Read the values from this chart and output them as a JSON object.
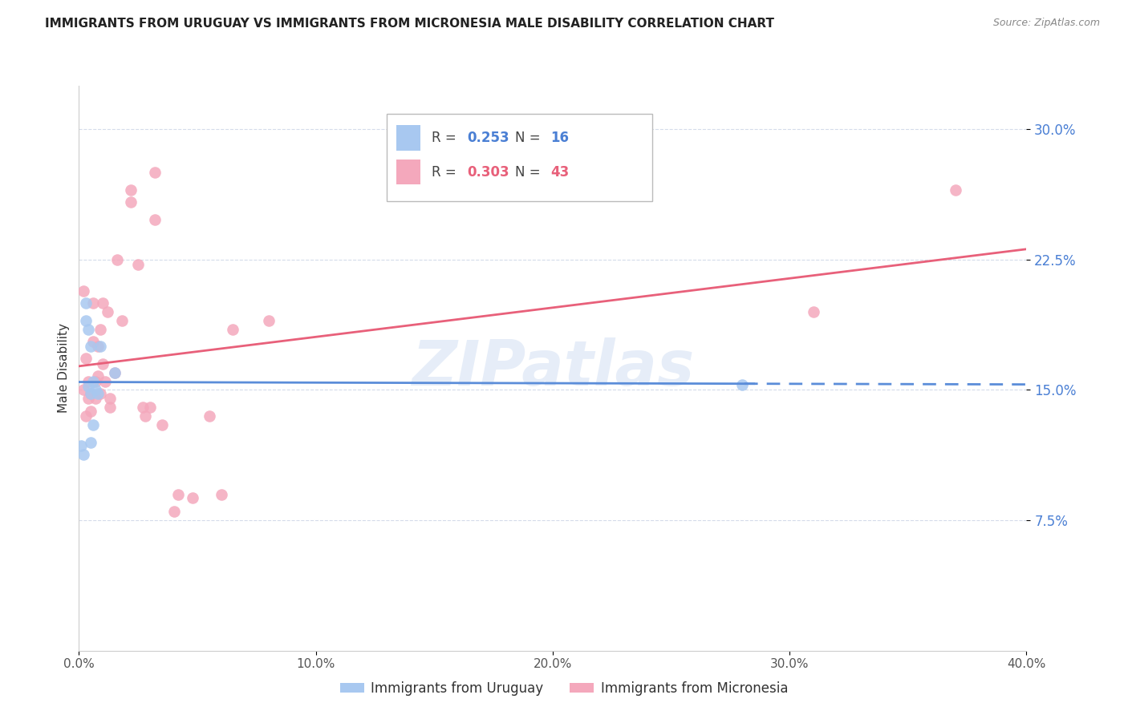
{
  "title": "IMMIGRANTS FROM URUGUAY VS IMMIGRANTS FROM MICRONESIA MALE DISABILITY CORRELATION CHART",
  "source": "Source: ZipAtlas.com",
  "ylabel": "Male Disability",
  "x_min": 0.0,
  "x_max": 0.4,
  "y_min": 0.0,
  "y_max": 0.325,
  "x_ticks": [
    0.0,
    0.1,
    0.2,
    0.3,
    0.4
  ],
  "x_tick_labels": [
    "0.0%",
    "10.0%",
    "20.0%",
    "30.0%",
    "40.0%"
  ],
  "y_ticks": [
    0.075,
    0.15,
    0.225,
    0.3
  ],
  "y_tick_labels": [
    "7.5%",
    "15.0%",
    "22.5%",
    "30.0%"
  ],
  "legend_label1": "Immigrants from Uruguay",
  "legend_label2": "Immigrants from Micronesia",
  "R1": 0.253,
  "N1": 16,
  "R2": 0.303,
  "N2": 43,
  "color1": "#a8c8f0",
  "color2": "#f4a8bc",
  "line_color1": "#5b8dd9",
  "line_color2": "#e8607a",
  "tick_color": "#4a7fd4",
  "uruguay_x": [
    0.001,
    0.002,
    0.003,
    0.003,
    0.004,
    0.004,
    0.005,
    0.005,
    0.005,
    0.006,
    0.006,
    0.007,
    0.008,
    0.009,
    0.015,
    0.28
  ],
  "uruguay_y": [
    0.118,
    0.113,
    0.2,
    0.19,
    0.185,
    0.152,
    0.175,
    0.148,
    0.12,
    0.155,
    0.13,
    0.15,
    0.148,
    0.175,
    0.16,
    0.153
  ],
  "micronesia_x": [
    0.002,
    0.002,
    0.003,
    0.003,
    0.004,
    0.004,
    0.005,
    0.005,
    0.006,
    0.006,
    0.007,
    0.007,
    0.008,
    0.008,
    0.009,
    0.009,
    0.01,
    0.01,
    0.011,
    0.012,
    0.013,
    0.013,
    0.015,
    0.016,
    0.018,
    0.022,
    0.022,
    0.025,
    0.027,
    0.028,
    0.03,
    0.032,
    0.032,
    0.035,
    0.04,
    0.042,
    0.048,
    0.055,
    0.06,
    0.065,
    0.08,
    0.31,
    0.37
  ],
  "micronesia_y": [
    0.207,
    0.15,
    0.168,
    0.135,
    0.155,
    0.145,
    0.148,
    0.138,
    0.2,
    0.178,
    0.155,
    0.145,
    0.175,
    0.158,
    0.185,
    0.148,
    0.2,
    0.165,
    0.155,
    0.195,
    0.145,
    0.14,
    0.16,
    0.225,
    0.19,
    0.265,
    0.258,
    0.222,
    0.14,
    0.135,
    0.14,
    0.275,
    0.248,
    0.13,
    0.08,
    0.09,
    0.088,
    0.135,
    0.09,
    0.185,
    0.19,
    0.195,
    0.265
  ]
}
